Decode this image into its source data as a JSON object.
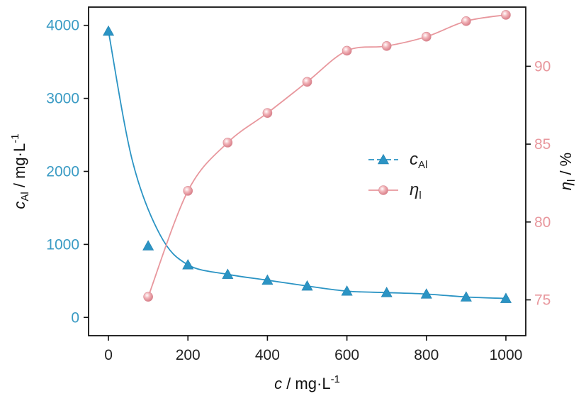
{
  "chart_data": {
    "type": "line",
    "x_axis": {
      "label": {
        "var": "c",
        "rest": " / mg·L",
        "sup": "-1"
      },
      "range": [
        -50,
        1050
      ],
      "ticks": [
        0,
        200,
        400,
        600,
        800,
        1000
      ]
    },
    "y_left": {
      "label": {
        "var": "c",
        "sub": "Al",
        "rest": " / mg·L",
        "sup": "-1"
      },
      "range": [
        -250,
        4250
      ],
      "ticks": [
        0,
        1000,
        2000,
        3000,
        4000
      ],
      "color": "#3a9bc4"
    },
    "y_right": {
      "label": {
        "var": "η",
        "sub": "l",
        "rest": " / %"
      },
      "range": [
        72.7,
        93.8
      ],
      "ticks": [
        75,
        80,
        85,
        90
      ],
      "color": "#e8979d"
    },
    "series": [
      {
        "name": {
          "var": "c",
          "sub": "Al"
        },
        "axis": "left",
        "marker": "triangle",
        "color": "#2b94c4",
        "x": [
          0,
          100,
          200,
          300,
          400,
          500,
          600,
          700,
          800,
          900,
          1000
        ],
        "y": [
          3920,
          980,
          720,
          590,
          510,
          430,
          360,
          340,
          320,
          280,
          260
        ]
      },
      {
        "name": {
          "var": "η",
          "sub": "l"
        },
        "axis": "right",
        "marker": "sphere",
        "color": "#e8979d",
        "x": [
          100,
          200,
          300,
          400,
          500,
          600,
          700,
          800,
          900,
          1000
        ],
        "y": [
          75.2,
          82.0,
          85.1,
          87.0,
          89.0,
          91.0,
          91.3,
          91.9,
          92.9,
          93.3
        ]
      }
    ],
    "grid": false,
    "legend_position": "center-right"
  }
}
